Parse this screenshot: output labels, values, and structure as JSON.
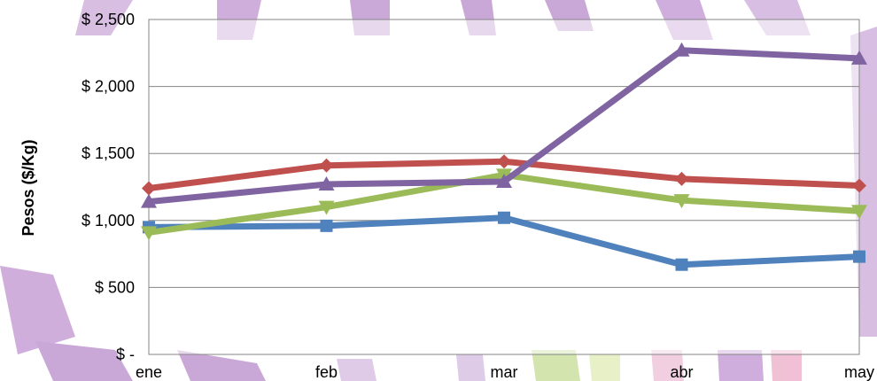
{
  "chart_data": {
    "type": "line",
    "title": "",
    "xlabel": "",
    "ylabel": "Pesos ($/Kg)",
    "categories": [
      "ene",
      "feb",
      "mar",
      "abr",
      "may"
    ],
    "ylim": [
      0,
      2500
    ],
    "yticks": [
      0,
      500,
      1000,
      1500,
      2000,
      2500
    ],
    "ytick_labels": [
      "$ -",
      "$ 500",
      "$ 1,000",
      "$ 1,500",
      "$ 2,000",
      "$ 2,500"
    ],
    "grid": true,
    "legend": "none",
    "series": [
      {
        "color": "#4F81BD",
        "marker": "square",
        "values": [
          950,
          960,
          1020,
          670,
          730
        ]
      },
      {
        "color": "#C0504D",
        "marker": "diamond",
        "values": [
          1240,
          1410,
          1440,
          1310,
          1260
        ]
      },
      {
        "color": "#9BBB59",
        "marker": "triangle-down",
        "values": [
          910,
          1100,
          1340,
          1150,
          1070
        ]
      },
      {
        "color": "#8064A2",
        "marker": "triangle-up",
        "values": [
          1140,
          1270,
          1290,
          2270,
          2210
        ]
      }
    ]
  }
}
